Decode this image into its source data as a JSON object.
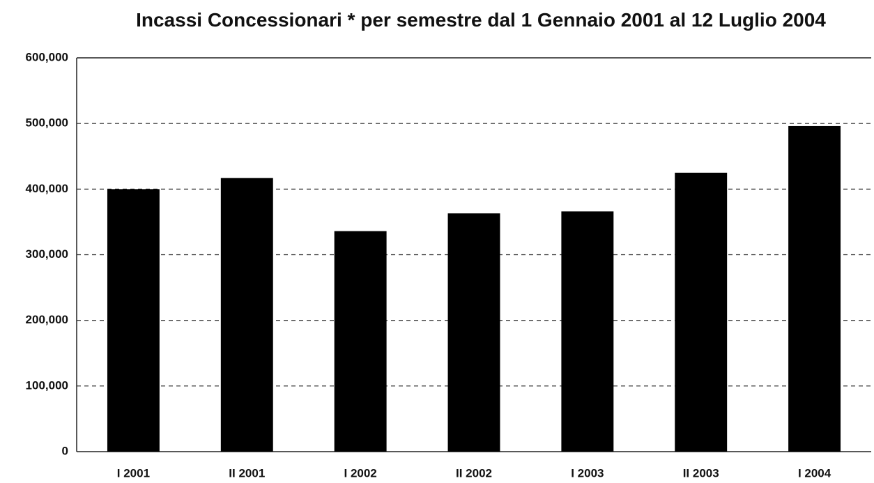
{
  "chart_data": {
    "type": "bar",
    "title": "Incassi Concessionari * per semestre dal 1 Gennaio 2001 al 12 Luglio 2004",
    "categories": [
      "I 2001",
      "II 2001",
      "I 2002",
      "II 2002",
      "I 2003",
      "II 2003",
      "I 2004"
    ],
    "values": [
      400000,
      417000,
      336000,
      363000,
      366000,
      425000,
      496000
    ],
    "color": "#000000",
    "ylim": [
      0,
      600000
    ],
    "yticks": [
      0,
      {
        "value": 100000,
        "label": "100,000"
      },
      {
        "value": 200000,
        "label": "200,000"
      },
      {
        "value": 300000,
        "label": "300,000"
      },
      {
        "value": 400000,
        "label": "400,000"
      },
      {
        "value": 500000,
        "label": "500,000"
      },
      {
        "value": 600000,
        "label": "600,000"
      }
    ],
    "grid": true
  }
}
